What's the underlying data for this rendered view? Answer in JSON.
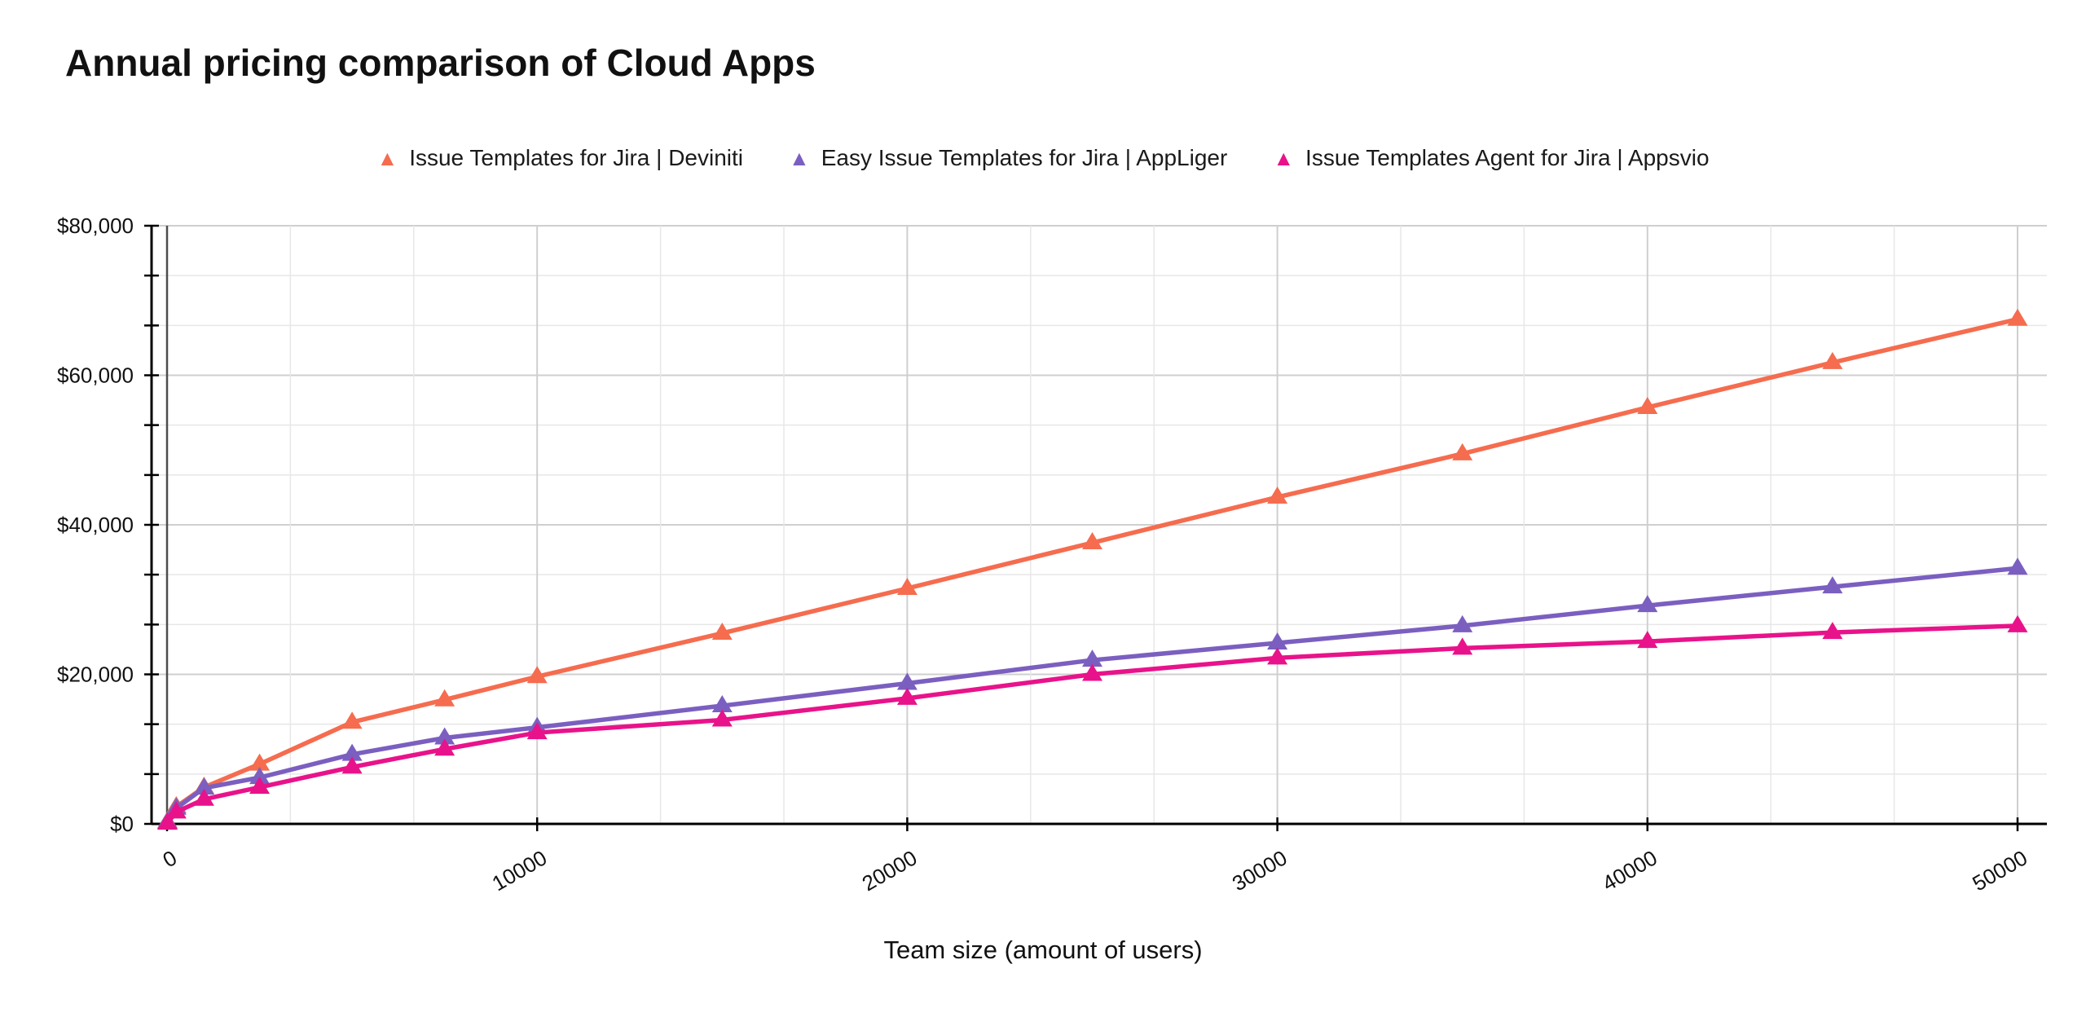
{
  "title": "Annual pricing comparison of Cloud Apps",
  "x_axis_title": "Team size (amount of users)",
  "chart_data": {
    "type": "line",
    "title": "Annual pricing comparison of Cloud Apps",
    "xlabel": "Team size (amount of users)",
    "ylabel": "",
    "x_tick_labels": [
      "0",
      "10000",
      "20000",
      "30000",
      "40000",
      "50000"
    ],
    "x_tick_values": [
      0,
      10000,
      20000,
      30000,
      40000,
      50000
    ],
    "y_tick_labels": [
      "$0",
      "$20,000",
      "$40,000",
      "$60,000",
      "$80,000"
    ],
    "y_tick_values": [
      0,
      20000,
      40000,
      60000,
      80000
    ],
    "xlim": [
      0,
      50000
    ],
    "ylim": [
      0,
      80000
    ],
    "grid": true,
    "minor_grid_divisions": 3,
    "legend_position": "top",
    "marker": "triangle-up",
    "x": [
      10,
      250,
      1000,
      2500,
      5000,
      7500,
      10000,
      15000,
      20000,
      25000,
      30000,
      35000,
      40000,
      45000,
      50000
    ],
    "series": [
      {
        "name": "Issue Templates for Jira | Deviniti",
        "color": "#F56C4F",
        "values": [
          300,
          2300,
          4900,
          8000,
          13600,
          16600,
          19700,
          25500,
          31500,
          37600,
          43700,
          49500,
          55700,
          61700,
          67500
        ]
      },
      {
        "name": "Easy Issue Templates for Jira | AppLiger",
        "color": "#7B5FC0",
        "values": [
          250,
          2100,
          4800,
          6200,
          9300,
          11500,
          12900,
          15800,
          18800,
          21900,
          24200,
          26500,
          29200,
          31700,
          34200
        ]
      },
      {
        "name": "Issue Templates Agent for Jira | Appsvio",
        "color": "#E8138A",
        "values": [
          100,
          1600,
          3300,
          4900,
          7600,
          10000,
          12200,
          13900,
          16800,
          20000,
          22200,
          23500,
          24400,
          25600,
          26500
        ]
      }
    ],
    "colors": {
      "axis": "#000000",
      "major_grid": "#cfcfcf",
      "minor_grid": "#e7e7e7",
      "zero_line": "#4d4d4d",
      "tick_label": "#111111"
    }
  },
  "legend": {
    "marker_glyph": "▲",
    "items": [
      {
        "label": "Issue Templates for Jira | Deviniti"
      },
      {
        "label": "Easy Issue Templates for Jira | AppLiger"
      },
      {
        "label": "Issue Templates Agent for Jira | Appsvio"
      }
    ]
  }
}
